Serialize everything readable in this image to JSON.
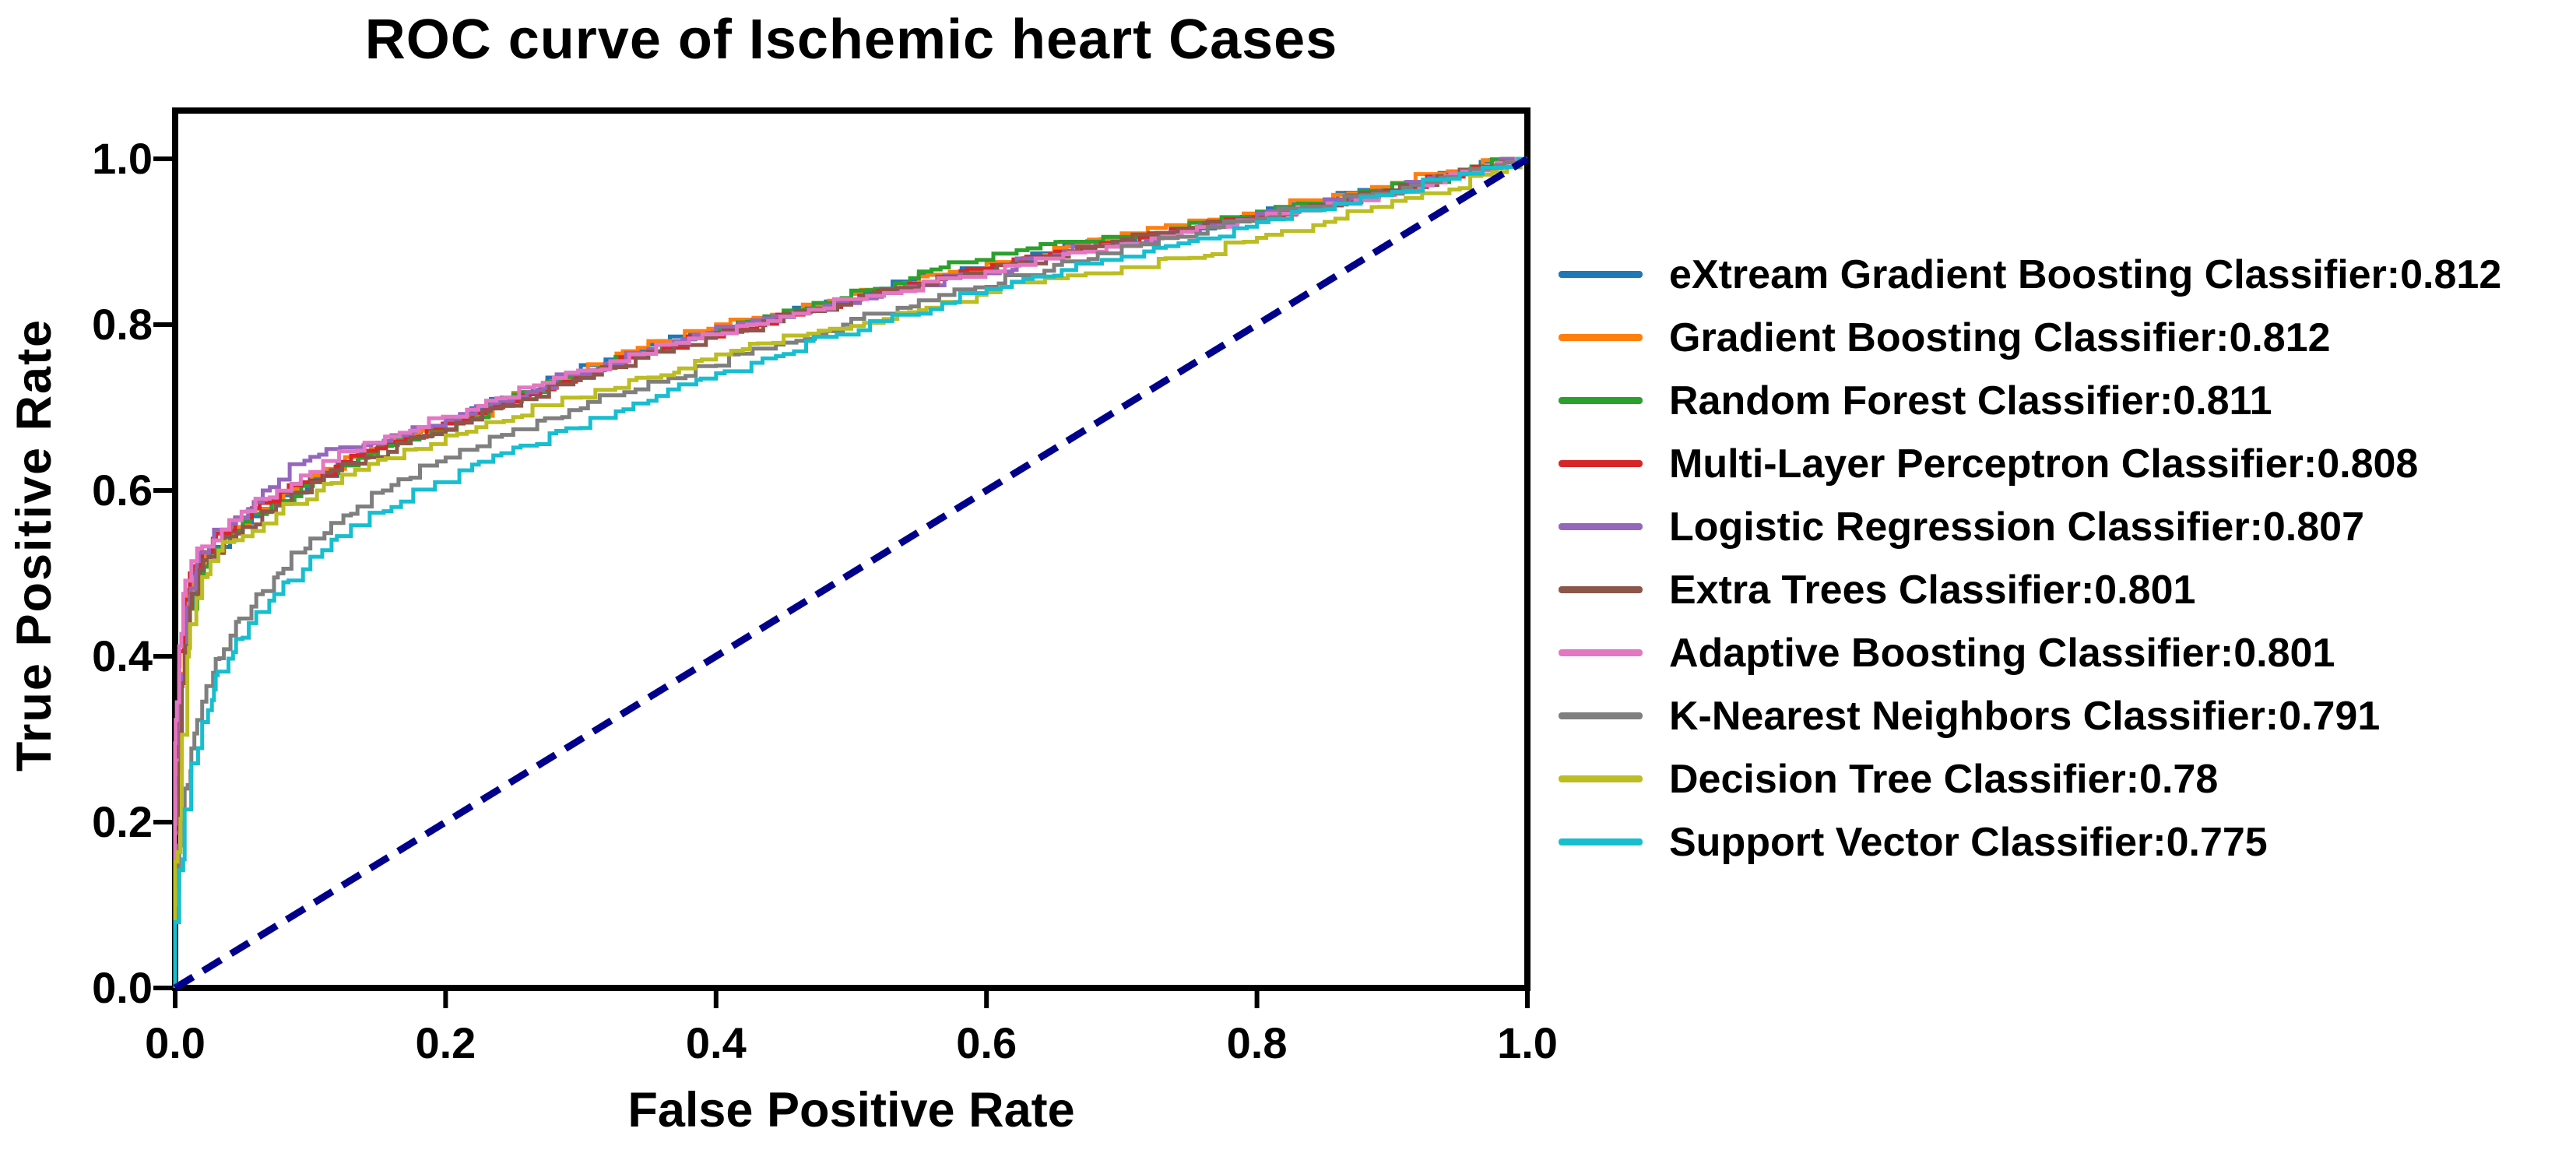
{
  "figure": {
    "title": "ROC curve of Ischemic heart Cases",
    "background": "#ffffff",
    "text_color": "#000000"
  },
  "axes": {
    "x": {
      "label": "False Positive Rate",
      "ticks": [
        "0.0",
        "0.2",
        "0.4",
        "0.6",
        "0.8",
        "1.0"
      ],
      "tick_values": [
        0,
        0.2,
        0.4,
        0.6,
        0.8,
        1.0
      ]
    },
    "y": {
      "label": "True Positive Rate",
      "ticks": [
        "0.0",
        "0.2",
        "0.4",
        "0.6",
        "0.8",
        "1.0"
      ],
      "tick_values": [
        0,
        0.2,
        0.4,
        0.6,
        0.8,
        1.0
      ]
    }
  },
  "chart_data": {
    "type": "line",
    "subtype": "roc-step-curves",
    "title": "ROC curve of Ischemic heart Cases",
    "xlabel": "False Positive Rate",
    "ylabel": "True Positive Rate",
    "xlim": [
      0,
      1.0
    ],
    "ylim": [
      0,
      1.058
    ],
    "grid": false,
    "legend_position": "center-right-outside",
    "diagonal": {
      "label": "chance-line",
      "style": "dashed",
      "color": "#00008b",
      "points": [
        [
          0,
          0
        ],
        [
          1,
          1
        ]
      ]
    },
    "series": [
      {
        "name": "eXtream Gradient Boosting Classifier",
        "auc": "0.812",
        "color": "#1f77b4",
        "points": [
          [
            0,
            0
          ],
          [
            0,
            0.21
          ],
          [
            0.004,
            0.35
          ],
          [
            0.009,
            0.44
          ],
          [
            0.015,
            0.48
          ],
          [
            0.025,
            0.51
          ],
          [
            0.05,
            0.553
          ],
          [
            0.08,
            0.588
          ],
          [
            0.11,
            0.615
          ],
          [
            0.15,
            0.648
          ],
          [
            0.2,
            0.676
          ],
          [
            0.25,
            0.712
          ],
          [
            0.3,
            0.742
          ],
          [
            0.35,
            0.768
          ],
          [
            0.4,
            0.792
          ],
          [
            0.45,
            0.808
          ],
          [
            0.5,
            0.828
          ],
          [
            0.55,
            0.852
          ],
          [
            0.6,
            0.868
          ],
          [
            0.65,
            0.886
          ],
          [
            0.7,
            0.902
          ],
          [
            0.75,
            0.916
          ],
          [
            0.8,
            0.93
          ],
          [
            0.85,
            0.948
          ],
          [
            0.9,
            0.964
          ],
          [
            0.95,
            0.983
          ],
          [
            1,
            1
          ]
        ]
      },
      {
        "name": "Gradient Boosting Classifier",
        "auc": "0.812",
        "color": "#ff7f0e",
        "points": [
          [
            0,
            0
          ],
          [
            0,
            0.24
          ],
          [
            0.003,
            0.37
          ],
          [
            0.008,
            0.45
          ],
          [
            0.014,
            0.49
          ],
          [
            0.022,
            0.512
          ],
          [
            0.05,
            0.556
          ],
          [
            0.08,
            0.59
          ],
          [
            0.11,
            0.618
          ],
          [
            0.15,
            0.65
          ],
          [
            0.2,
            0.672
          ],
          [
            0.25,
            0.708
          ],
          [
            0.3,
            0.738
          ],
          [
            0.35,
            0.772
          ],
          [
            0.4,
            0.795
          ],
          [
            0.45,
            0.812
          ],
          [
            0.5,
            0.83
          ],
          [
            0.55,
            0.85
          ],
          [
            0.6,
            0.866
          ],
          [
            0.65,
            0.884
          ],
          [
            0.7,
            0.904
          ],
          [
            0.75,
            0.92
          ],
          [
            0.8,
            0.934
          ],
          [
            0.85,
            0.95
          ],
          [
            0.9,
            0.966
          ],
          [
            0.95,
            0.985
          ],
          [
            1,
            1
          ]
        ]
      },
      {
        "name": "Random Forest Classifier",
        "auc": "0.811",
        "color": "#2ca02c",
        "points": [
          [
            0,
            0
          ],
          [
            0,
            0.18
          ],
          [
            0.004,
            0.33
          ],
          [
            0.01,
            0.43
          ],
          [
            0.018,
            0.488
          ],
          [
            0.03,
            0.525
          ],
          [
            0.05,
            0.55
          ],
          [
            0.08,
            0.585
          ],
          [
            0.11,
            0.612
          ],
          [
            0.15,
            0.645
          ],
          [
            0.2,
            0.67
          ],
          [
            0.25,
            0.705
          ],
          [
            0.3,
            0.737
          ],
          [
            0.35,
            0.765
          ],
          [
            0.4,
            0.788
          ],
          [
            0.45,
            0.81
          ],
          [
            0.5,
            0.832
          ],
          [
            0.55,
            0.856
          ],
          [
            0.6,
            0.878
          ],
          [
            0.64,
            0.892
          ],
          [
            0.68,
            0.9
          ],
          [
            0.72,
            0.906
          ],
          [
            0.75,
            0.916
          ],
          [
            0.8,
            0.93
          ],
          [
            0.85,
            0.946
          ],
          [
            0.9,
            0.962
          ],
          [
            0.95,
            0.98
          ],
          [
            1,
            1
          ]
        ]
      },
      {
        "name": "Multi-Layer Perceptron Classifier",
        "auc": "0.808",
        "color": "#d62728",
        "points": [
          [
            0,
            0
          ],
          [
            0,
            0.26
          ],
          [
            0.003,
            0.38
          ],
          [
            0.007,
            0.46
          ],
          [
            0.013,
            0.5
          ],
          [
            0.02,
            0.52
          ],
          [
            0.04,
            0.548
          ],
          [
            0.07,
            0.585
          ],
          [
            0.1,
            0.61
          ],
          [
            0.14,
            0.642
          ],
          [
            0.18,
            0.664
          ],
          [
            0.22,
            0.686
          ],
          [
            0.27,
            0.716
          ],
          [
            0.32,
            0.746
          ],
          [
            0.37,
            0.772
          ],
          [
            0.42,
            0.795
          ],
          [
            0.47,
            0.815
          ],
          [
            0.52,
            0.835
          ],
          [
            0.57,
            0.855
          ],
          [
            0.62,
            0.872
          ],
          [
            0.67,
            0.888
          ],
          [
            0.72,
            0.905
          ],
          [
            0.77,
            0.918
          ],
          [
            0.82,
            0.932
          ],
          [
            0.87,
            0.948
          ],
          [
            0.92,
            0.966
          ],
          [
            0.96,
            0.984
          ],
          [
            1,
            1
          ]
        ]
      },
      {
        "name": "Logistic Regression Classifier",
        "auc": "0.807",
        "color": "#9467bd",
        "points": [
          [
            0,
            0
          ],
          [
            0,
            0.2
          ],
          [
            0.004,
            0.34
          ],
          [
            0.009,
            0.45
          ],
          [
            0.016,
            0.5
          ],
          [
            0.025,
            0.525
          ],
          [
            0.045,
            0.56
          ],
          [
            0.07,
            0.6
          ],
          [
            0.1,
            0.636
          ],
          [
            0.13,
            0.652
          ],
          [
            0.16,
            0.66
          ],
          [
            0.2,
            0.678
          ],
          [
            0.25,
            0.708
          ],
          [
            0.3,
            0.74
          ],
          [
            0.35,
            0.766
          ],
          [
            0.4,
            0.79
          ],
          [
            0.45,
            0.81
          ],
          [
            0.5,
            0.826
          ],
          [
            0.55,
            0.846
          ],
          [
            0.6,
            0.862
          ],
          [
            0.65,
            0.88
          ],
          [
            0.7,
            0.898
          ],
          [
            0.75,
            0.912
          ],
          [
            0.8,
            0.926
          ],
          [
            0.85,
            0.944
          ],
          [
            0.9,
            0.96
          ],
          [
            0.95,
            0.98
          ],
          [
            1,
            1
          ]
        ]
      },
      {
        "name": "Extra Trees Classifier",
        "auc": "0.801",
        "color": "#8c564b",
        "points": [
          [
            0,
            0
          ],
          [
            0,
            0.17
          ],
          [
            0.005,
            0.35
          ],
          [
            0.011,
            0.45
          ],
          [
            0.018,
            0.49
          ],
          [
            0.03,
            0.52
          ],
          [
            0.05,
            0.548
          ],
          [
            0.08,
            0.582
          ],
          [
            0.11,
            0.61
          ],
          [
            0.15,
            0.64
          ],
          [
            0.2,
            0.668
          ],
          [
            0.25,
            0.702
          ],
          [
            0.3,
            0.733
          ],
          [
            0.35,
            0.76
          ],
          [
            0.4,
            0.784
          ],
          [
            0.45,
            0.804
          ],
          [
            0.5,
            0.824
          ],
          [
            0.55,
            0.844
          ],
          [
            0.6,
            0.862
          ],
          [
            0.65,
            0.882
          ],
          [
            0.7,
            0.9
          ],
          [
            0.75,
            0.914
          ],
          [
            0.8,
            0.928
          ],
          [
            0.85,
            0.944
          ],
          [
            0.9,
            0.96
          ],
          [
            0.95,
            0.981
          ],
          [
            1,
            1
          ]
        ]
      },
      {
        "name": "Adaptive Boosting Classifier",
        "auc": "0.801",
        "color": "#e377c2",
        "points": [
          [
            0,
            0
          ],
          [
            0,
            0.28
          ],
          [
            0.003,
            0.4
          ],
          [
            0.006,
            0.46
          ],
          [
            0.012,
            0.505
          ],
          [
            0.02,
            0.53
          ],
          [
            0.04,
            0.553
          ],
          [
            0.07,
            0.59
          ],
          [
            0.1,
            0.618
          ],
          [
            0.14,
            0.648
          ],
          [
            0.18,
            0.672
          ],
          [
            0.23,
            0.702
          ],
          [
            0.28,
            0.73
          ],
          [
            0.33,
            0.756
          ],
          [
            0.38,
            0.778
          ],
          [
            0.43,
            0.8
          ],
          [
            0.48,
            0.818
          ],
          [
            0.53,
            0.838
          ],
          [
            0.58,
            0.856
          ],
          [
            0.63,
            0.872
          ],
          [
            0.68,
            0.888
          ],
          [
            0.73,
            0.904
          ],
          [
            0.78,
            0.918
          ],
          [
            0.83,
            0.934
          ],
          [
            0.88,
            0.95
          ],
          [
            0.93,
            0.968
          ],
          [
            0.97,
            0.986
          ],
          [
            1,
            1
          ]
        ]
      },
      {
        "name": "K-Nearest Neighbors Classifier",
        "auc": "0.791",
        "color": "#7f7f7f",
        "points": [
          [
            0,
            0
          ],
          [
            0,
            0.09
          ],
          [
            0.003,
            0.16
          ],
          [
            0.007,
            0.22
          ],
          [
            0.012,
            0.28
          ],
          [
            0.02,
            0.335
          ],
          [
            0.03,
            0.38
          ],
          [
            0.045,
            0.425
          ],
          [
            0.06,
            0.46
          ],
          [
            0.08,
            0.5
          ],
          [
            0.1,
            0.53
          ],
          [
            0.13,
            0.57
          ],
          [
            0.16,
            0.6
          ],
          [
            0.2,
            0.635
          ],
          [
            0.25,
            0.667
          ],
          [
            0.3,
            0.697
          ],
          [
            0.35,
            0.722
          ],
          [
            0.4,
            0.75
          ],
          [
            0.45,
            0.776
          ],
          [
            0.5,
            0.8
          ],
          [
            0.55,
            0.822
          ],
          [
            0.6,
            0.845
          ],
          [
            0.65,
            0.865
          ],
          [
            0.7,
            0.886
          ],
          [
            0.75,
            0.906
          ],
          [
            0.8,
            0.925
          ],
          [
            0.85,
            0.942
          ],
          [
            0.9,
            0.958
          ],
          [
            0.95,
            0.978
          ],
          [
            1,
            1
          ]
        ]
      },
      {
        "name": "Decision Tree Classifier",
        "auc": "0.78",
        "color": "#bcbd22",
        "points": [
          [
            0,
            0
          ],
          [
            0,
            0.14
          ],
          [
            0.005,
            0.28
          ],
          [
            0.011,
            0.41
          ],
          [
            0.02,
            0.48
          ],
          [
            0.032,
            0.515
          ],
          [
            0.05,
            0.54
          ],
          [
            0.08,
            0.572
          ],
          [
            0.11,
            0.6
          ],
          [
            0.15,
            0.632
          ],
          [
            0.2,
            0.656
          ],
          [
            0.25,
            0.684
          ],
          [
            0.3,
            0.712
          ],
          [
            0.35,
            0.736
          ],
          [
            0.4,
            0.758
          ],
          [
            0.45,
            0.778
          ],
          [
            0.5,
            0.795
          ],
          [
            0.55,
            0.815
          ],
          [
            0.6,
            0.836
          ],
          [
            0.65,
            0.856
          ],
          [
            0.7,
            0.862
          ],
          [
            0.75,
            0.88
          ],
          [
            0.8,
            0.9
          ],
          [
            0.85,
            0.92
          ],
          [
            0.9,
            0.942
          ],
          [
            0.95,
            0.963
          ],
          [
            0.985,
            0.984
          ],
          [
            1,
            1
          ]
        ]
      },
      {
        "name": "Support Vector Classifier",
        "auc": "0.775",
        "color": "#17becf",
        "points": [
          [
            0,
            0
          ],
          [
            0,
            0.07
          ],
          [
            0.003,
            0.13
          ],
          [
            0.007,
            0.19
          ],
          [
            0.012,
            0.25
          ],
          [
            0.02,
            0.31
          ],
          [
            0.03,
            0.36
          ],
          [
            0.045,
            0.405
          ],
          [
            0.06,
            0.44
          ],
          [
            0.08,
            0.475
          ],
          [
            0.1,
            0.505
          ],
          [
            0.13,
            0.545
          ],
          [
            0.16,
            0.575
          ],
          [
            0.2,
            0.61
          ],
          [
            0.25,
            0.645
          ],
          [
            0.3,
            0.675
          ],
          [
            0.35,
            0.705
          ],
          [
            0.4,
            0.735
          ],
          [
            0.45,
            0.762
          ],
          [
            0.5,
            0.788
          ],
          [
            0.55,
            0.812
          ],
          [
            0.6,
            0.838
          ],
          [
            0.65,
            0.858
          ],
          [
            0.7,
            0.878
          ],
          [
            0.75,
            0.898
          ],
          [
            0.8,
            0.918
          ],
          [
            0.85,
            0.938
          ],
          [
            0.9,
            0.956
          ],
          [
            0.95,
            0.976
          ],
          [
            1,
            1
          ]
        ]
      }
    ]
  }
}
